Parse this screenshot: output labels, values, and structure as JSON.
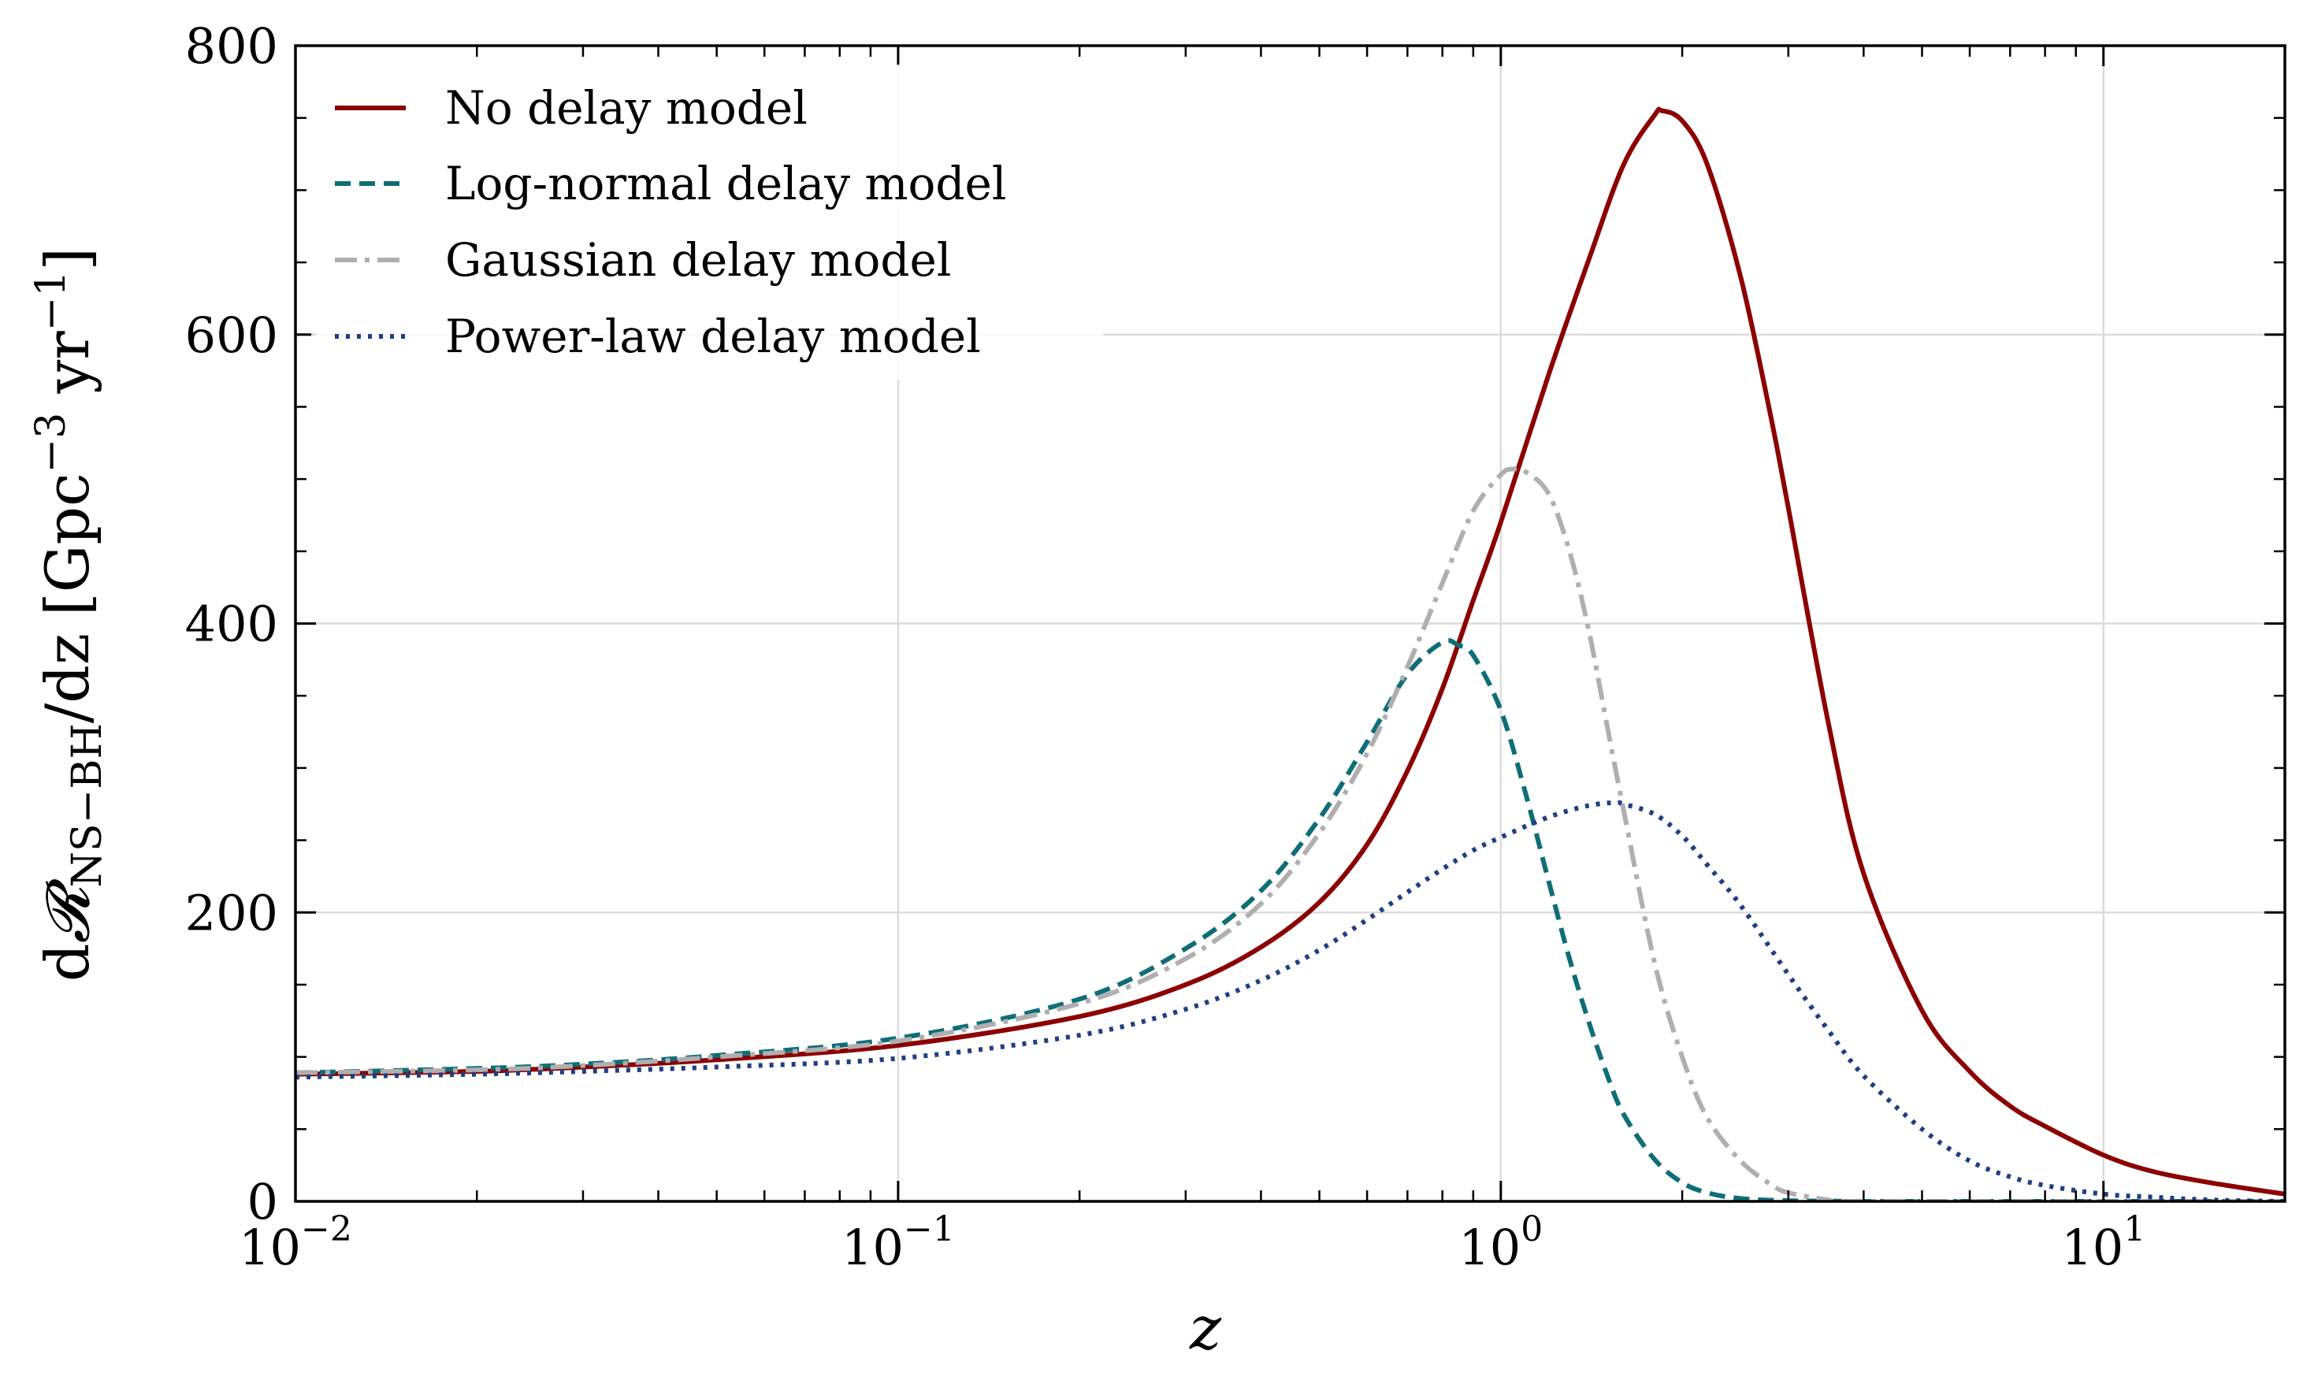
{
  "chart_data": {
    "type": "line",
    "xlabel": "z",
    "ylabel_parts": {
      "d": "d",
      "R": "𝓡",
      "sub": "NS−BH",
      "mid": "/dz",
      "units_open": "[Gpc",
      "sup1": "−3",
      "units_mid": " yr",
      "sup2": "−1",
      "units_close": "]"
    },
    "x_scale": "log",
    "xlim": [
      0.01,
      20
    ],
    "ylim": [
      0,
      800
    ],
    "grid": true,
    "legend_position": "top-left",
    "x_ticks": [
      {
        "base": "10",
        "exp": "−2"
      },
      {
        "base": "10",
        "exp": "−1"
      },
      {
        "base": "10",
        "exp": "0"
      },
      {
        "base": "10",
        "exp": "1"
      }
    ],
    "y_ticks": [
      "0",
      "200",
      "400",
      "600",
      "800"
    ],
    "series": [
      {
        "name": "No delay model",
        "color": "#8b0000",
        "style": "solid",
        "x": [
          0.01,
          0.02,
          0.03,
          0.05,
          0.1,
          0.2,
          0.3,
          0.4,
          0.5,
          0.6,
          0.7,
          0.8,
          0.9,
          1.0,
          1.2,
          1.4,
          1.6,
          1.8,
          1.85,
          2.0,
          2.2,
          2.5,
          2.8,
          3.0,
          3.5,
          4.0,
          5.0,
          6.0,
          7.0,
          8.0,
          10.0,
          12.0,
          15.0,
          20.0
        ],
        "y": [
          88,
          90,
          93,
          98,
          108,
          128,
          150,
          176,
          207,
          247,
          298,
          355,
          416,
          470,
          572,
          652,
          718,
          752,
          755,
          748,
          718,
          640,
          545,
          480,
          330,
          227,
          132,
          90,
          66,
          52,
          32,
          21,
          13,
          5
        ]
      },
      {
        "name": "Log-normal delay model",
        "color": "#0e6e78",
        "style": "dashed",
        "x": [
          0.01,
          0.02,
          0.03,
          0.05,
          0.1,
          0.2,
          0.3,
          0.4,
          0.5,
          0.6,
          0.7,
          0.8,
          0.85,
          0.9,
          1.0,
          1.1,
          1.2,
          1.3,
          1.4,
          1.5,
          1.6,
          1.8,
          2.0,
          2.2,
          2.5,
          3.0,
          4.0,
          5.0,
          20.0
        ],
        "y": [
          89,
          92,
          95,
          101,
          113,
          140,
          175,
          215,
          265,
          318,
          365,
          387,
          385,
          378,
          340,
          282,
          222,
          168,
          124,
          88,
          60,
          29,
          13,
          6,
          2,
          0.5,
          0,
          0,
          0
        ]
      },
      {
        "name": "Gaussian delay model",
        "color": "#b0aeb0",
        "style": "dashdot",
        "x": [
          0.01,
          0.02,
          0.03,
          0.05,
          0.1,
          0.2,
          0.3,
          0.4,
          0.5,
          0.6,
          0.7,
          0.8,
          0.9,
          1.0,
          1.05,
          1.1,
          1.2,
          1.3,
          1.4,
          1.5,
          1.6,
          1.8,
          2.0,
          2.2,
          2.5,
          2.8,
          3.0,
          3.5,
          4.0,
          20.0
        ],
        "y": [
          89,
          91,
          94,
          100,
          111,
          137,
          168,
          206,
          255,
          310,
          370,
          428,
          478,
          503,
          507,
          505,
          490,
          450,
          395,
          330,
          270,
          165,
          100,
          58,
          28,
          12,
          6,
          1,
          0,
          0
        ]
      },
      {
        "name": "Power-law delay model",
        "color": "#1f3f82",
        "style": "dotted",
        "x": [
          0.01,
          0.02,
          0.03,
          0.05,
          0.1,
          0.2,
          0.3,
          0.4,
          0.5,
          0.6,
          0.7,
          0.8,
          0.9,
          1.0,
          1.2,
          1.4,
          1.55,
          1.6,
          1.8,
          2.0,
          2.2,
          2.5,
          3.0,
          3.5,
          4.0,
          5.0,
          6.0,
          7.0,
          8.0,
          10.0,
          12.0,
          15.0,
          20.0
        ],
        "y": [
          86,
          88,
          90,
          93,
          99,
          115,
          133,
          153,
          174,
          195,
          214,
          230,
          243,
          252,
          266,
          274,
          276,
          275,
          268,
          253,
          233,
          205,
          157,
          118,
          87,
          50,
          28,
          17,
          11,
          5,
          3,
          1,
          0
        ]
      }
    ]
  }
}
